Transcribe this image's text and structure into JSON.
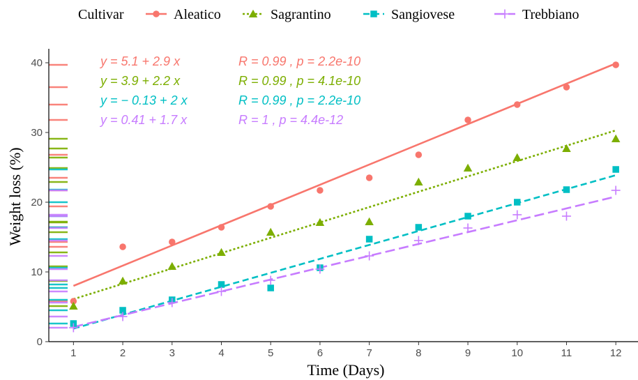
{
  "chart_data": {
    "type": "scatter",
    "xlabel": "Time (Days)",
    "ylabel": "Weight loss (%)",
    "xlim": [
      0.5,
      12.45
    ],
    "ylim": [
      0,
      42
    ],
    "x_ticks": [
      1,
      2,
      3,
      4,
      5,
      6,
      7,
      8,
      9,
      10,
      11,
      12
    ],
    "y_ticks": [
      0,
      10,
      20,
      30,
      40
    ],
    "grid": false,
    "legend": {
      "title": "Cultivar",
      "position": "top"
    },
    "x": [
      1,
      2,
      3,
      4,
      5,
      6,
      7,
      8,
      9,
      10,
      11,
      12
    ],
    "series": [
      {
        "name": "Aleatico",
        "color": "#F8766D",
        "marker": "circle",
        "line_style": "solid",
        "values": [
          5.8,
          13.6,
          14.3,
          16.4,
          19.4,
          21.7,
          23.5,
          26.8,
          31.8,
          34.0,
          36.5,
          39.7
        ],
        "fit": {
          "intercept": 5.1,
          "slope": 2.9
        },
        "equation": "y = 5.1 + 2.9 x",
        "stats": "R = 0.99 , p = 2.2e-10"
      },
      {
        "name": "Sagrantino",
        "color": "#7CAE00",
        "marker": "triangle",
        "line_style": "dotted",
        "values": [
          5.1,
          8.7,
          10.8,
          12.8,
          15.7,
          17.1,
          17.2,
          22.9,
          24.9,
          26.4,
          27.7,
          29.1
        ],
        "fit": {
          "intercept": 3.9,
          "slope": 2.2
        },
        "equation": "y = 3.9 + 2.2 x",
        "stats": "R = 0.99 , p = 4.1e-10"
      },
      {
        "name": "Sangiovese",
        "color": "#00BFC4",
        "marker": "square",
        "line_style": "dashed",
        "values": [
          2.6,
          4.5,
          6.0,
          8.2,
          7.7,
          10.6,
          14.7,
          16.4,
          18.0,
          20.0,
          21.8,
          24.7
        ],
        "fit": {
          "intercept": -0.13,
          "slope": 2.0
        },
        "equation": "y = − 0.13 + 2 x",
        "stats": "R = 0.99 , p = 2.2e-10"
      },
      {
        "name": "Trebbiano",
        "color": "#C77CFF",
        "marker": "plus",
        "line_style": "longdash",
        "values": [
          2.0,
          3.6,
          5.6,
          7.2,
          8.8,
          10.4,
          12.3,
          14.5,
          16.3,
          18.2,
          18.0,
          21.7
        ],
        "fit": {
          "intercept": 0.41,
          "slope": 1.7
        },
        "equation": "y = 0.41 + 1.7 x",
        "stats": "R = 1 , p = 4.4e-12"
      }
    ]
  }
}
